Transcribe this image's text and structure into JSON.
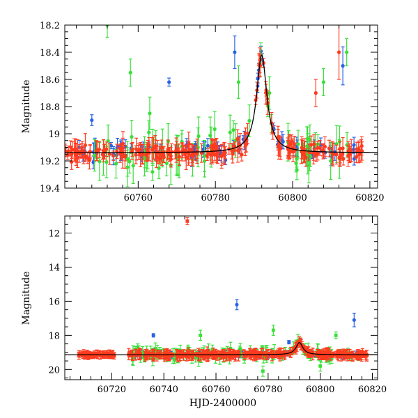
{
  "chart_data": [
    {
      "type": "scatter",
      "panel": "top",
      "title": "",
      "xlabel": "",
      "ylabel": "Magnitude",
      "xlim": [
        60741,
        60822
      ],
      "ylim": [
        19.4,
        18.2
      ],
      "y_inverted": true,
      "xticks": [
        60760,
        60780,
        60800,
        60820
      ],
      "yticks": [
        18.2,
        18.4,
        18.6,
        18.8,
        19,
        19.2,
        19.4
      ],
      "ytick_labels": [
        "18.2",
        "18.4",
        "18.6",
        "18.8",
        "19",
        "19.2",
        "19.4"
      ],
      "grid": false,
      "legend": "none",
      "series": [
        {
          "color": "#2a63e6",
          "errorbars": true
        },
        {
          "color": "#39e039",
          "errorbars": true
        },
        {
          "color": "#ff3b1f",
          "errorbars": true
        }
      ],
      "model_curve": {
        "color": "#000000",
        "baseline": 19.14,
        "peak_x": 60792,
        "peak_y": 18.42,
        "width_days": 1.6
      },
      "notable_points": [
        {
          "series": 0,
          "x": 60768,
          "y": 18.62,
          "err": 0.03
        },
        {
          "series": 0,
          "x": 60748,
          "y": 18.9,
          "err": 0.04
        },
        {
          "series": 1,
          "x": 60752,
          "y": 18.2,
          "err": 0.09
        },
        {
          "series": 1,
          "x": 60758,
          "y": 18.55,
          "err": 0.1
        },
        {
          "series": 1,
          "x": 60786,
          "y": 18.62,
          "err": 0.12
        },
        {
          "series": 1,
          "x": 60794,
          "y": 18.7,
          "err": 0.12
        },
        {
          "series": 1,
          "x": 60808,
          "y": 18.62,
          "err": 0.1
        },
        {
          "series": 1,
          "x": 60814,
          "y": 18.4,
          "err": 0.1
        },
        {
          "series": 1,
          "x": 60763,
          "y": 18.85,
          "err": 0.12
        },
        {
          "series": 0,
          "x": 60785,
          "y": 18.4,
          "err": 0.12
        },
        {
          "series": 0,
          "x": 60813,
          "y": 18.5,
          "err": 0.14
        },
        {
          "series": 2,
          "x": 60812,
          "y": 18.4,
          "err": 0.2
        },
        {
          "series": 2,
          "x": 60806,
          "y": 18.7,
          "err": 0.1
        }
      ]
    },
    {
      "type": "scatter",
      "panel": "bottom",
      "title": "",
      "xlabel": "HJD-2400000",
      "ylabel": "Magnitude",
      "xlim": [
        60702,
        60822
      ],
      "ylim": [
        20.6,
        11
      ],
      "y_inverted": true,
      "xticks": [
        60720,
        60740,
        60760,
        60780,
        60800,
        60820
      ],
      "yticks": [
        12,
        14,
        16,
        18,
        20
      ],
      "ytick_labels": [
        "12",
        "14",
        "16",
        "18",
        "20"
      ],
      "grid": false,
      "legend": "none",
      "series": [
        {
          "color": "#2a63e6",
          "errorbars": true
        },
        {
          "color": "#39e039",
          "errorbars": true
        },
        {
          "color": "#ff3b1f",
          "errorbars": true
        }
      ],
      "model_curve": {
        "color": "#000000",
        "baseline": 19.14,
        "peak_x": 60792,
        "peak_y": 18.42,
        "width_days": 1.6
      },
      "notable_points": [
        {
          "series": 2,
          "x": 60749,
          "y": 11.3,
          "err": 0.2
        },
        {
          "series": 0,
          "x": 60768,
          "y": 16.2,
          "err": 0.3
        },
        {
          "series": 0,
          "x": 60813,
          "y": 17.1,
          "err": 0.4
        },
        {
          "series": 0,
          "x": 60736,
          "y": 18.0,
          "err": 0.1
        },
        {
          "series": 1,
          "x": 60754,
          "y": 18.0,
          "err": 0.3
        },
        {
          "series": 1,
          "x": 60782,
          "y": 17.7,
          "err": 0.3
        },
        {
          "series": 1,
          "x": 60806,
          "y": 18.0,
          "err": 0.2
        },
        {
          "series": 1,
          "x": 60730,
          "y": 18.7,
          "err": 0.2
        },
        {
          "series": 1,
          "x": 60778,
          "y": 20.1,
          "err": 0.3
        },
        {
          "series": 1,
          "x": 60800,
          "y": 19.8,
          "err": 0.3
        },
        {
          "series": 0,
          "x": 60788,
          "y": 18.4,
          "err": 0.1
        }
      ]
    }
  ]
}
